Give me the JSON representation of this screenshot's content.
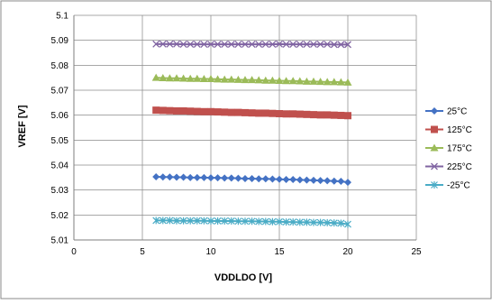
{
  "chart_data": {
    "type": "scatter",
    "title": "",
    "xlabel": "VDDLDO [V]",
    "ylabel": "VREF [V]",
    "xlim": [
      0,
      25
    ],
    "ylim": [
      5.01,
      5.1
    ],
    "x_ticks": [
      "0",
      "5",
      "10",
      "15",
      "20",
      "25"
    ],
    "y_ticks": [
      "5.01",
      "5.02",
      "5.03",
      "5.04",
      "5.05",
      "5.06",
      "5.07",
      "5.08",
      "5.09",
      "5.1"
    ],
    "x_tick_values": [
      0,
      5,
      10,
      15,
      20,
      25
    ],
    "y_tick_values": [
      5.01,
      5.02,
      5.03,
      5.04,
      5.05,
      5.06,
      5.07,
      5.08,
      5.09,
      5.1
    ],
    "grid": "vertical-and-horizontal",
    "legend_position": "right",
    "x": [
      6,
      6.5,
      7,
      7.5,
      8,
      8.5,
      9,
      9.5,
      10,
      10.5,
      11,
      11.5,
      12,
      12.5,
      13,
      13.5,
      14,
      14.5,
      15,
      15.5,
      16,
      16.5,
      17,
      17.5,
      18,
      18.5,
      19,
      19.5,
      20
    ],
    "series": [
      {
        "name": "25°C",
        "color": "#4472C4",
        "marker": "diamond",
        "values": [
          5.0353,
          5.0352,
          5.0352,
          5.0351,
          5.0351,
          5.035,
          5.035,
          5.035,
          5.0349,
          5.0349,
          5.0348,
          5.0348,
          5.0347,
          5.0346,
          5.0346,
          5.0345,
          5.0345,
          5.0344,
          5.0343,
          5.0342,
          5.0342,
          5.0341,
          5.034,
          5.0339,
          5.0338,
          5.0337,
          5.0336,
          5.0335,
          5.0331
        ]
      },
      {
        "name": "125°C",
        "color": "#C0504D",
        "marker": "square",
        "values": [
          5.062,
          5.0619,
          5.0618,
          5.0617,
          5.0617,
          5.0616,
          5.0615,
          5.0614,
          5.0614,
          5.0613,
          5.0612,
          5.0611,
          5.0611,
          5.061,
          5.0609,
          5.0608,
          5.0608,
          5.0607,
          5.0606,
          5.0605,
          5.0605,
          5.0604,
          5.0603,
          5.0602,
          5.0601,
          5.0601,
          5.06,
          5.0599,
          5.0598
        ]
      },
      {
        "name": "175°C",
        "color": "#9BBB59",
        "marker": "triangle",
        "values": [
          5.075,
          5.0749,
          5.0748,
          5.0748,
          5.0747,
          5.0746,
          5.0746,
          5.0745,
          5.0745,
          5.0744,
          5.0743,
          5.0743,
          5.0742,
          5.0741,
          5.0741,
          5.074,
          5.0739,
          5.0739,
          5.0738,
          5.0737,
          5.0737,
          5.0736,
          5.0735,
          5.0735,
          5.0734,
          5.0733,
          5.0733,
          5.0732,
          5.0731
        ]
      },
      {
        "name": "225°C",
        "color": "#8064A2",
        "marker": "x",
        "values": [
          5.0885,
          5.0885,
          5.0885,
          5.0885,
          5.0884,
          5.0884,
          5.0884,
          5.0884,
          5.0884,
          5.0884,
          5.0884,
          5.0884,
          5.0884,
          5.0884,
          5.0884,
          5.0884,
          5.0884,
          5.0884,
          5.0885,
          5.0884,
          5.0884,
          5.0884,
          5.0884,
          5.0884,
          5.0884,
          5.0884,
          5.0883,
          5.0883,
          5.0883
        ]
      },
      {
        "name": "-25°C",
        "color": "#4BACC6",
        "marker": "asterisk",
        "values": [
          5.0178,
          5.0178,
          5.0178,
          5.0177,
          5.0177,
          5.0177,
          5.0177,
          5.0177,
          5.0176,
          5.0176,
          5.0176,
          5.0176,
          5.0175,
          5.0175,
          5.0175,
          5.0174,
          5.0174,
          5.0173,
          5.0173,
          5.0172,
          5.0172,
          5.0171,
          5.0171,
          5.017,
          5.017,
          5.0169,
          5.0168,
          5.0167,
          5.0163
        ]
      }
    ]
  },
  "colors": {
    "frame": "#8A8A8A",
    "grid": "#8C8C8C",
    "axis": "#7F7F7F"
  }
}
